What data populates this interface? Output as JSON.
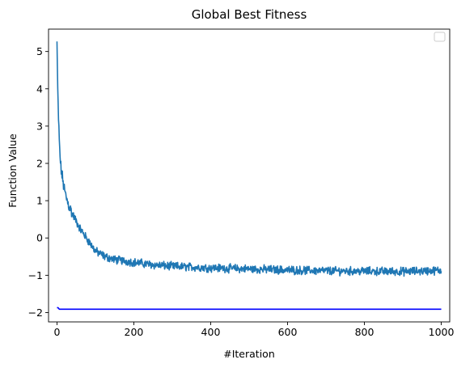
{
  "chart_data": {
    "type": "line",
    "title": "Global Best Fitness",
    "xlabel": "#Iteration",
    "ylabel": "Function Value",
    "xlim": [
      -22,
      1022
    ],
    "ylim": [
      -2.25,
      5.6
    ],
    "x_ticks": [
      0,
      200,
      400,
      600,
      800,
      1000
    ],
    "y_ticks": [
      -2,
      -1,
      0,
      1,
      2,
      3,
      4,
      5
    ],
    "x_tick_labels": [
      "0",
      "200",
      "400",
      "600",
      "800",
      "1000"
    ],
    "y_tick_labels": [
      "−2",
      "−1",
      "0",
      "1",
      "2",
      "3",
      "4",
      "5"
    ],
    "grid": false,
    "legend": {
      "placement": "top-right",
      "entries": []
    },
    "series": [
      {
        "color": "#1f77b4",
        "style": "noisy",
        "x": [
          0,
          2,
          4,
          6,
          8,
          10,
          15,
          20,
          25,
          30,
          40,
          50,
          60,
          70,
          80,
          90,
          100,
          125,
          150,
          200,
          250,
          300,
          400,
          500,
          600,
          700,
          800,
          900,
          1000
        ],
        "y": [
          5.27,
          3.9,
          3.2,
          2.6,
          2.2,
          1.9,
          1.55,
          1.25,
          1.05,
          0.9,
          0.65,
          0.45,
          0.25,
          0.1,
          -0.05,
          -0.2,
          -0.35,
          -0.5,
          -0.58,
          -0.65,
          -0.72,
          -0.76,
          -0.8,
          -0.83,
          -0.86,
          -0.88,
          -0.89,
          -0.9,
          -0.87
        ],
        "noise_amplitude": 0.09
      },
      {
        "color": "#0000ff",
        "style": "smooth",
        "x": [
          0,
          3,
          6,
          1000
        ],
        "y": [
          -1.87,
          -1.87,
          -1.91,
          -1.91
        ]
      }
    ]
  }
}
